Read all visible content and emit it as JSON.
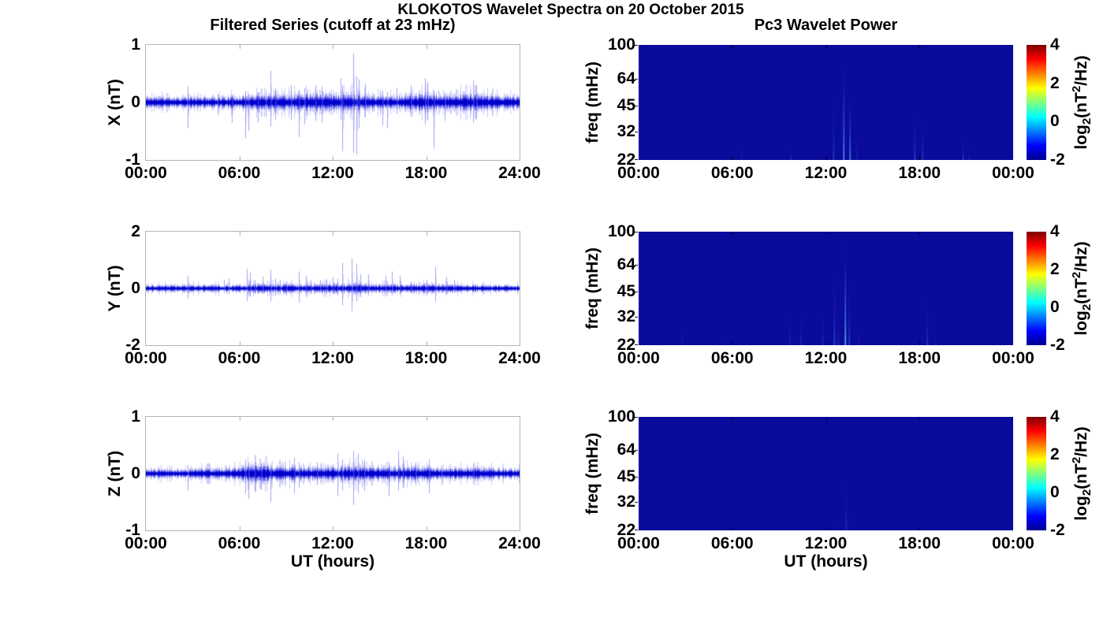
{
  "figure": {
    "title": "KLOKOTOS Wavelet Spectra on 20 October 2015",
    "left_column_title": "Filtered Series (cutoff at 23 mHz)",
    "right_column_title": "Pc3 Wavelet Power",
    "xlabel": "UT (hours)"
  },
  "colors": {
    "background": "#ffffff",
    "text": "#000000",
    "series_line": "#0000dd",
    "spectrogram_background": "#0a0a9b",
    "axis_frame": "#b4b4b4",
    "tick_mark_gray": "#a9a9a9",
    "tick_mark_black": "#000000"
  },
  "colorbar": {
    "range": [
      -2,
      4
    ],
    "ticks": [
      "4",
      "2",
      "0",
      "-2"
    ],
    "tick_values": [
      4,
      2,
      0,
      -2
    ],
    "label_pre": "log",
    "label_sub": "2",
    "label_mid": "(nT",
    "label_sup": "2",
    "label_post": "/Hz)",
    "gradient": [
      [
        "#7f0000",
        0
      ],
      [
        "#ff0000",
        12.5
      ],
      [
        "#ffff00",
        37.5
      ],
      [
        "#00ffff",
        62.5
      ],
      [
        "#0000ff",
        87.5
      ],
      [
        "#00008f",
        100
      ]
    ]
  },
  "chart_data": [
    {
      "id": "filtered-series-x",
      "type": "line",
      "ylabel": "X (nT)",
      "ylim": [
        -1,
        1
      ],
      "ytick_values": [
        1,
        0,
        -1
      ],
      "ytick_labels": [
        "1",
        "0",
        "-1"
      ],
      "xtick_labels": [
        "00:00",
        "06:00",
        "12:00",
        "18:00",
        "24:00"
      ],
      "x_hours": [
        0,
        24
      ],
      "noise_envelope": [
        [
          0,
          0.065
        ],
        [
          2,
          0.06
        ],
        [
          4,
          0.06
        ],
        [
          6,
          0.07
        ],
        [
          7.5,
          0.09
        ],
        [
          8.5,
          0.1
        ],
        [
          9.5,
          0.09
        ],
        [
          10.3,
          0.11
        ],
        [
          11.5,
          0.12
        ],
        [
          12.2,
          0.09
        ],
        [
          13,
          0.1
        ],
        [
          13.8,
          0.1
        ],
        [
          14.5,
          0.08
        ],
        [
          16,
          0.07
        ],
        [
          17.5,
          0.1
        ],
        [
          18.3,
          0.1
        ],
        [
          19,
          0.07
        ],
        [
          20.8,
          0.11
        ],
        [
          21.5,
          0.08
        ],
        [
          24,
          0.07
        ]
      ],
      "spikes": [
        [
          2.7,
          0.28,
          -0.45
        ],
        [
          4.6,
          0.15,
          -0.22
        ],
        [
          5.5,
          0.12,
          -0.35
        ],
        [
          6.4,
          0.2,
          -0.62
        ],
        [
          6.6,
          0.15,
          -0.5
        ],
        [
          7.2,
          0.18,
          -0.35
        ],
        [
          7.7,
          0.2,
          -0.25
        ],
        [
          8.0,
          0.55,
          -0.42
        ],
        [
          8.3,
          0.25,
          -0.3
        ],
        [
          9.3,
          0.3,
          -0.3
        ],
        [
          9.8,
          0.22,
          -0.6
        ],
        [
          10.2,
          0.25,
          -0.38
        ],
        [
          10.9,
          0.3,
          -0.32
        ],
        [
          11.3,
          0.28,
          -0.35
        ],
        [
          12.5,
          0.42,
          -0.3
        ],
        [
          12.62,
          0.3,
          -0.85
        ],
        [
          13.3,
          0.85,
          -0.88
        ],
        [
          13.5,
          0.45,
          -0.9
        ],
        [
          13.65,
          0.4,
          -0.45
        ],
        [
          14.1,
          0.32,
          -0.25
        ],
        [
          15.2,
          0.2,
          -0.4
        ],
        [
          15.5,
          0.18,
          -0.45
        ],
        [
          16.1,
          0.25,
          -0.2
        ],
        [
          17.0,
          0.3,
          -0.25
        ],
        [
          17.9,
          0.42,
          -0.38
        ],
        [
          18.1,
          0.35,
          -0.3
        ],
        [
          18.5,
          0.2,
          -0.8
        ],
        [
          19.2,
          0.18,
          -0.32
        ],
        [
          21.0,
          0.38,
          -0.35
        ],
        [
          21.2,
          0.3,
          -0.28
        ]
      ]
    },
    {
      "id": "filtered-series-y",
      "type": "line",
      "ylabel": "Y (nT)",
      "ylim": [
        -2,
        2
      ],
      "ytick_values": [
        2,
        0,
        -2
      ],
      "ytick_labels": [
        "2",
        "0",
        "-2"
      ],
      "xtick_labels": [
        "00:00",
        "06:00",
        "12:00",
        "18:00",
        "24:00"
      ],
      "x_hours": [
        0,
        24
      ],
      "noise_envelope": [
        [
          0,
          0.07
        ],
        [
          6,
          0.08
        ],
        [
          8,
          0.1
        ],
        [
          10,
          0.09
        ],
        [
          12,
          0.1
        ],
        [
          13.5,
          0.11
        ],
        [
          14,
          0.09
        ],
        [
          18,
          0.09
        ],
        [
          24,
          0.07
        ]
      ],
      "spikes": [
        [
          2.7,
          0.45,
          -0.35
        ],
        [
          5.0,
          0.3,
          -0.15
        ],
        [
          5.3,
          0.35,
          -0.2
        ],
        [
          6.5,
          0.7,
          -0.45
        ],
        [
          6.7,
          0.55,
          -0.3
        ],
        [
          7.0,
          0.3,
          -0.2
        ],
        [
          7.5,
          0.42,
          -0.2
        ],
        [
          8.0,
          0.65,
          -0.45
        ],
        [
          8.3,
          0.35,
          -0.25
        ],
        [
          8.6,
          0.3,
          -0.2
        ],
        [
          9.0,
          0.25,
          -0.25
        ],
        [
          9.8,
          0.6,
          -0.5
        ],
        [
          10.3,
          0.45,
          -0.3
        ],
        [
          10.6,
          0.3,
          -0.2
        ],
        [
          11.2,
          0.3,
          -0.15
        ],
        [
          11.6,
          0.32,
          -0.2
        ],
        [
          12.0,
          0.4,
          -0.2
        ],
        [
          12.3,
          0.35,
          -0.25
        ],
        [
          12.6,
          0.9,
          -0.6
        ],
        [
          13.2,
          1.05,
          -0.8
        ],
        [
          13.5,
          0.85,
          -0.45
        ],
        [
          13.75,
          0.5,
          -0.3
        ],
        [
          14.3,
          0.5,
          -0.25
        ],
        [
          15.4,
          0.45,
          -0.2
        ],
        [
          15.8,
          0.6,
          -0.25
        ],
        [
          16.3,
          0.45,
          -0.2
        ],
        [
          17.0,
          0.25,
          -0.15
        ],
        [
          18.0,
          0.3,
          -0.25
        ],
        [
          18.6,
          0.75,
          -0.45
        ],
        [
          19.3,
          0.4,
          -0.2
        ],
        [
          19.8,
          0.3,
          -0.15
        ]
      ]
    },
    {
      "id": "filtered-series-z",
      "type": "line",
      "ylabel": "Z (nT)",
      "ylim": [
        -1,
        1
      ],
      "ytick_values": [
        1,
        0,
        -1
      ],
      "ytick_labels": [
        "1",
        "0",
        "-1"
      ],
      "xtick_labels": [
        "00:00",
        "06:00",
        "12:00",
        "18:00",
        "24:00"
      ],
      "x_hours": [
        0,
        24
      ],
      "noise_envelope": [
        [
          0,
          0.05
        ],
        [
          3,
          0.05
        ],
        [
          6,
          0.07
        ],
        [
          6.8,
          0.1
        ],
        [
          7.5,
          0.1
        ],
        [
          8.2,
          0.08
        ],
        [
          9.5,
          0.08
        ],
        [
          10.5,
          0.07
        ],
        [
          12,
          0.08
        ],
        [
          13.5,
          0.09
        ],
        [
          14.5,
          0.07
        ],
        [
          16,
          0.07
        ],
        [
          17.5,
          0.08
        ],
        [
          19,
          0.06
        ],
        [
          21,
          0.065
        ],
        [
          24,
          0.055
        ]
      ],
      "spikes": [
        [
          2.7,
          0.15,
          -0.3
        ],
        [
          6.4,
          0.25,
          -0.35
        ],
        [
          6.6,
          0.2,
          -0.45
        ],
        [
          7.0,
          0.2,
          -0.3
        ],
        [
          7.4,
          0.18,
          -0.28
        ],
        [
          8.0,
          0.15,
          -0.5
        ],
        [
          9.5,
          0.28,
          -0.35
        ],
        [
          9.8,
          0.2,
          -0.25
        ],
        [
          11.0,
          0.2,
          -0.2
        ],
        [
          12.3,
          0.35,
          -0.4
        ],
        [
          12.6,
          0.25,
          -0.3
        ],
        [
          13.3,
          0.4,
          -0.55
        ],
        [
          13.6,
          0.35,
          -0.35
        ],
        [
          14.0,
          0.25,
          -0.3
        ],
        [
          15.6,
          0.2,
          -0.4
        ],
        [
          16.2,
          0.4,
          -0.3
        ],
        [
          16.5,
          0.3,
          -0.25
        ],
        [
          17.3,
          0.2,
          -0.2
        ],
        [
          18.2,
          0.25,
          -0.35
        ],
        [
          19.0,
          0.15,
          -0.2
        ],
        [
          21.0,
          0.18,
          -0.18
        ]
      ]
    },
    {
      "id": "wavelet-power-x",
      "type": "heatmap",
      "ylabel": "freq (mHz)",
      "yscale": "log",
      "ylim_mhz": [
        22,
        100
      ],
      "ytick_values": [
        100,
        64,
        45,
        32,
        22
      ],
      "ytick_labels": [
        "100",
        "64",
        "45",
        "32",
        "22"
      ],
      "xtick_labels": [
        "00:00",
        "06:00",
        "12:00",
        "18:00",
        "00:00"
      ],
      "clim": [
        -2,
        4
      ],
      "background_value": -2,
      "streaks": [
        [
          2.8,
          26,
          0.1
        ],
        [
          6.6,
          28,
          0.12
        ],
        [
          9.75,
          27,
          0.25
        ],
        [
          12.5,
          62,
          0.3
        ],
        [
          13.15,
          95,
          0.55
        ],
        [
          13.55,
          60,
          0.45
        ],
        [
          14.0,
          35,
          0.15
        ],
        [
          17.7,
          45,
          0.35
        ],
        [
          18.2,
          40,
          0.3
        ],
        [
          20.8,
          30,
          0.35
        ],
        [
          21.2,
          27,
          0.15
        ]
      ]
    },
    {
      "id": "wavelet-power-y",
      "type": "heatmap",
      "ylabel": "freq (mHz)",
      "yscale": "log",
      "ylim_mhz": [
        22,
        100
      ],
      "ytick_values": [
        100,
        64,
        45,
        32,
        22
      ],
      "ytick_labels": [
        "100",
        "64",
        "45",
        "32",
        "22"
      ],
      "xtick_labels": [
        "00:00",
        "06:00",
        "12:00",
        "18:00",
        "00:00"
      ],
      "clim": [
        -2,
        4
      ],
      "background_value": -2,
      "streaks": [
        [
          2.8,
          30,
          0.12
        ],
        [
          5.6,
          26,
          0.08
        ],
        [
          9.7,
          35,
          0.2
        ],
        [
          10.4,
          38,
          0.2
        ],
        [
          11.8,
          42,
          0.2
        ],
        [
          12.55,
          70,
          0.4
        ],
        [
          12.8,
          45,
          0.2
        ],
        [
          13.25,
          98,
          0.7
        ],
        [
          13.5,
          60,
          0.35
        ],
        [
          14.1,
          30,
          0.15
        ],
        [
          18.5,
          45,
          0.28
        ],
        [
          19.0,
          28,
          0.12
        ]
      ]
    },
    {
      "id": "wavelet-power-z",
      "type": "heatmap",
      "ylabel": "freq (mHz)",
      "yscale": "log",
      "ylim_mhz": [
        22,
        100
      ],
      "ytick_values": [
        100,
        64,
        45,
        32,
        22
      ],
      "ytick_labels": [
        "100",
        "64",
        "45",
        "32",
        "22"
      ],
      "xtick_labels": [
        "00:00",
        "06:00",
        "12:00",
        "18:00",
        "00:00"
      ],
      "clim": [
        -2,
        4
      ],
      "background_value": -2,
      "streaks": [
        [
          12.6,
          26,
          0.08
        ],
        [
          13.3,
          48,
          0.25
        ],
        [
          13.55,
          30,
          0.1
        ]
      ]
    }
  ]
}
